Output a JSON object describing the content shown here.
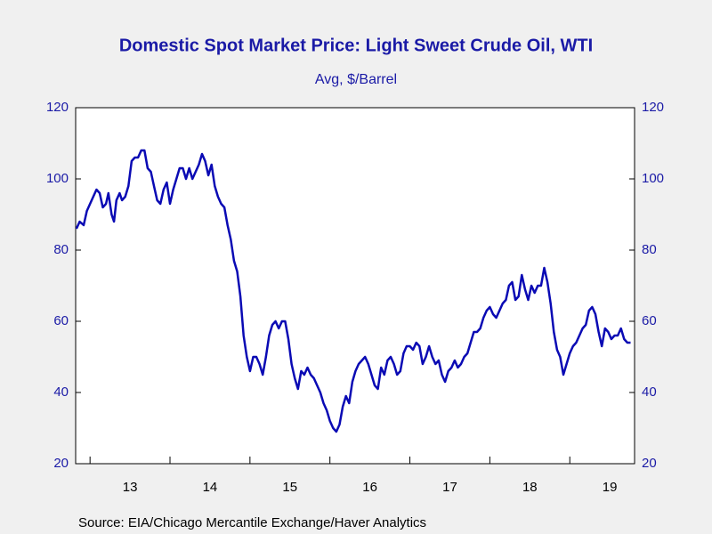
{
  "chart_data": {
    "type": "line",
    "title": "Domestic Spot Market Price: Light Sweet Crude Oil, WTI",
    "subtitle": "Avg, $/Barrel",
    "source": "Source:  EIA/Chicago Mercantile Exchange/Haver Analytics",
    "color": "#0a0ab4",
    "xlim": [
      12.82,
      19.81
    ],
    "xticks": [
      {
        "value": 13,
        "label": "13"
      },
      {
        "value": 14,
        "label": "14"
      },
      {
        "value": 15,
        "label": "15"
      },
      {
        "value": 16,
        "label": "16"
      },
      {
        "value": 17,
        "label": "17"
      },
      {
        "value": 18,
        "label": "18"
      },
      {
        "value": 19,
        "label": "19"
      }
    ],
    "ylim": [
      20,
      120
    ],
    "yticks": [
      20,
      40,
      60,
      80,
      100,
      120
    ],
    "x": [
      12.83,
      12.87,
      12.92,
      12.96,
      13.0,
      13.04,
      13.08,
      13.12,
      13.16,
      13.2,
      13.23,
      13.27,
      13.3,
      13.33,
      13.37,
      13.4,
      13.44,
      13.48,
      13.52,
      13.56,
      13.6,
      13.64,
      13.68,
      13.72,
      13.76,
      13.8,
      13.84,
      13.88,
      13.92,
      13.96,
      14.0,
      14.04,
      14.08,
      14.12,
      14.16,
      14.2,
      14.24,
      14.28,
      14.32,
      14.36,
      14.4,
      14.44,
      14.48,
      14.52,
      14.56,
      14.6,
      14.64,
      14.68,
      14.72,
      14.76,
      14.8,
      14.84,
      14.88,
      14.92,
      14.96,
      15.0,
      15.04,
      15.08,
      15.12,
      15.16,
      15.2,
      15.24,
      15.28,
      15.32,
      15.36,
      15.4,
      15.44,
      15.48,
      15.52,
      15.56,
      15.6,
      15.64,
      15.68,
      15.72,
      15.76,
      15.8,
      15.84,
      15.88,
      15.92,
      15.96,
      16.0,
      16.04,
      16.08,
      16.12,
      16.16,
      16.2,
      16.24,
      16.28,
      16.32,
      16.36,
      16.4,
      16.44,
      16.48,
      16.52,
      16.56,
      16.6,
      16.64,
      16.68,
      16.72,
      16.76,
      16.8,
      16.84,
      16.88,
      16.92,
      16.96,
      17.0,
      17.04,
      17.08,
      17.12,
      17.16,
      17.2,
      17.24,
      17.28,
      17.32,
      17.36,
      17.4,
      17.44,
      17.48,
      17.52,
      17.56,
      17.6,
      17.64,
      17.68,
      17.72,
      17.76,
      17.8,
      17.84,
      17.88,
      17.92,
      17.96,
      18.0,
      18.04,
      18.08,
      18.12,
      18.16,
      18.2,
      18.24,
      18.28,
      18.32,
      18.36,
      18.4,
      18.44,
      18.48,
      18.52,
      18.56,
      18.6,
      18.64,
      18.68,
      18.72,
      18.76,
      18.8,
      18.84,
      18.88,
      18.92,
      18.96,
      19.0,
      19.04,
      19.08,
      19.12,
      19.16,
      19.2,
      19.24,
      19.28,
      19.32,
      19.36,
      19.4,
      19.44,
      19.48,
      19.52,
      19.56,
      19.6,
      19.64,
      19.68,
      19.72,
      19.76
    ],
    "values": [
      86,
      88,
      87,
      91,
      93,
      95,
      97,
      96,
      92,
      93,
      96,
      90,
      88,
      94,
      96,
      94,
      95,
      98,
      105,
      106,
      106,
      108,
      108,
      103,
      102,
      98,
      94,
      93,
      97,
      99,
      93,
      97,
      100,
      103,
      103,
      100,
      103,
      100,
      102,
      104,
      107,
      105,
      101,
      104,
      98,
      95,
      93,
      92,
      87,
      83,
      77,
      74,
      67,
      56,
      50,
      46,
      50,
      50,
      48,
      45,
      50,
      56,
      59,
      60,
      58,
      60,
      60,
      55,
      48,
      44,
      41,
      46,
      45,
      47,
      45,
      44,
      42,
      40,
      37,
      35,
      32,
      30,
      29,
      31,
      36,
      39,
      37,
      43,
      46,
      48,
      49,
      50,
      48,
      45,
      42,
      41,
      47,
      45,
      49,
      50,
      48,
      45,
      46,
      51,
      53,
      53,
      52,
      54,
      53,
      48,
      50,
      53,
      50,
      48,
      49,
      45,
      43,
      46,
      47,
      49,
      47,
      48,
      50,
      51,
      54,
      57,
      57,
      58,
      61,
      63,
      64,
      62,
      61,
      63,
      65,
      66,
      70,
      71,
      66,
      67,
      73,
      69,
      66,
      70,
      68,
      70,
      70,
      75,
      71,
      65,
      57,
      52,
      50,
      45,
      48,
      51,
      53,
      54,
      56,
      58,
      59,
      63,
      64,
      62,
      57,
      53,
      58,
      57,
      55,
      56,
      56,
      58,
      55,
      54,
      54
    ]
  }
}
